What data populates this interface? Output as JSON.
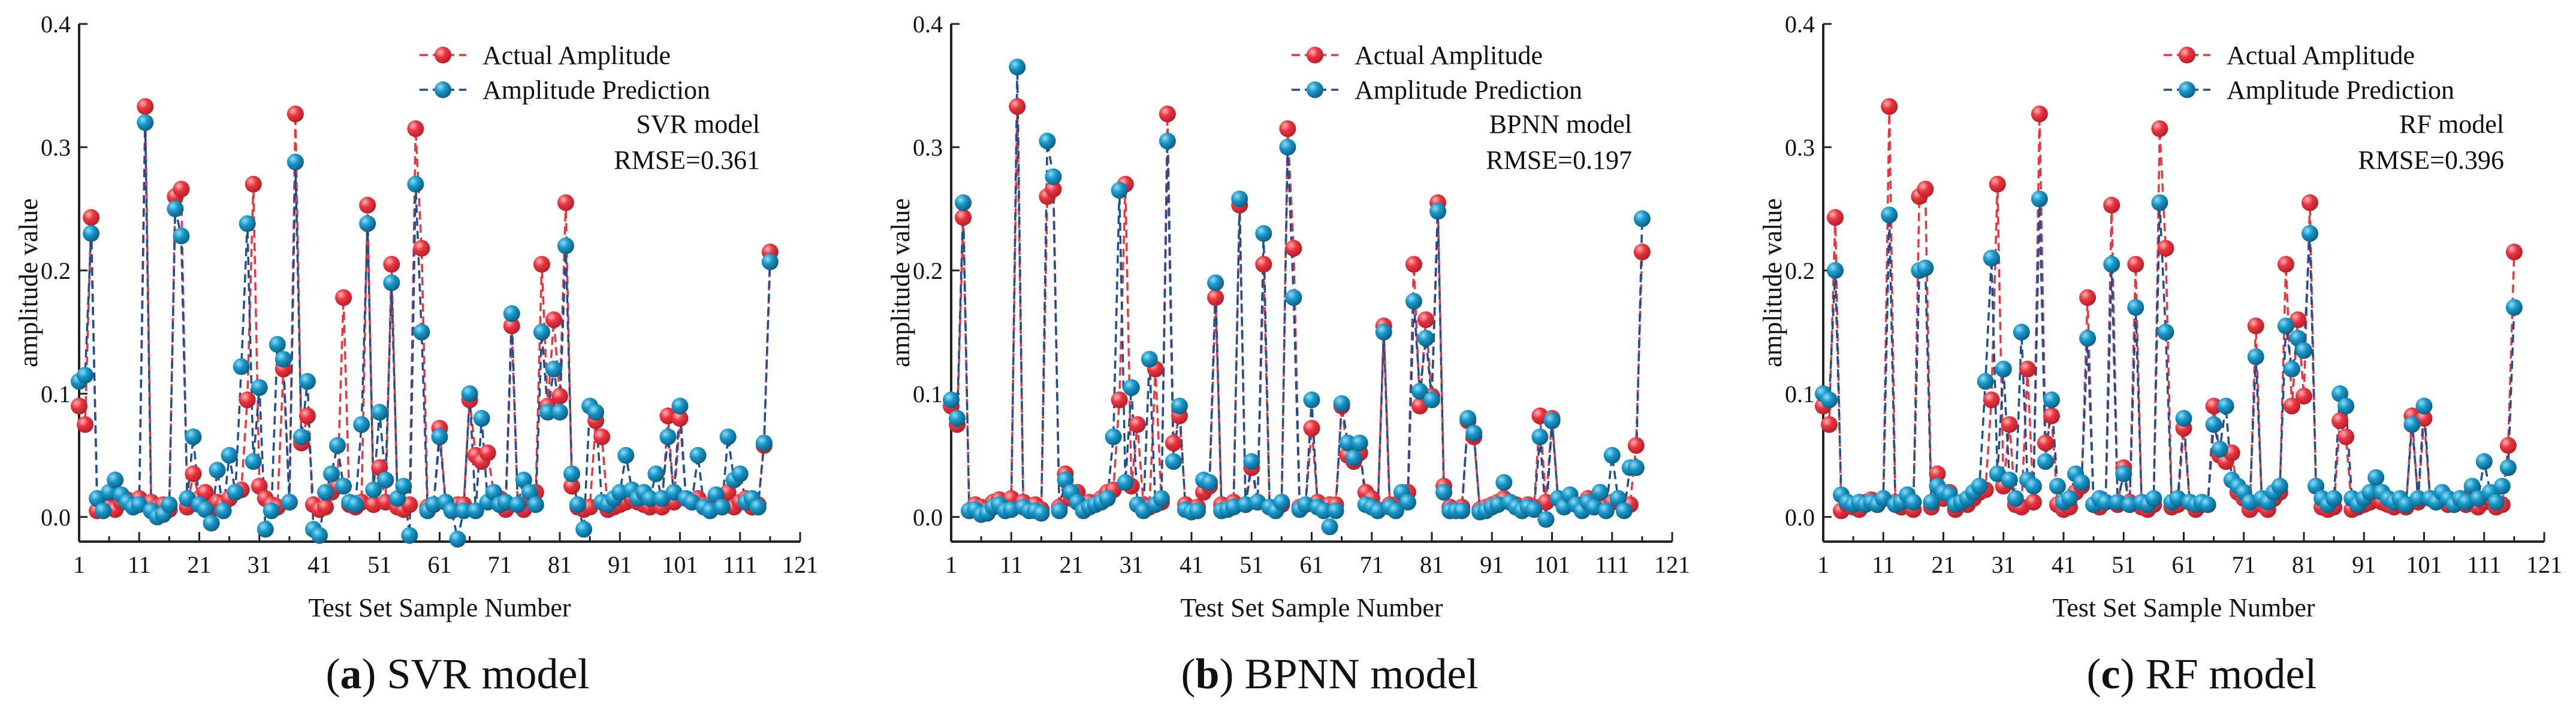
{
  "colors": {
    "actual": "#e8353f",
    "actual_dark": "#b81e28",
    "pred": "#1797c8",
    "pred_dark": "#0d5e84",
    "pred_line": "#1d4f93"
  },
  "chart_data": [
    {
      "type": "line",
      "caption_letter": "a",
      "caption_rest": " SVR model",
      "model_label": "SVR model",
      "rmse_label": "RMSE=0.361",
      "xlabel": "Test Set Sample Number",
      "ylabel": "amplitude value",
      "xlim": [
        1,
        121
      ],
      "ylim": [
        -0.02,
        0.4
      ],
      "xticks": [
        1,
        11,
        21,
        31,
        41,
        51,
        61,
        71,
        81,
        91,
        101,
        111,
        121
      ],
      "yticks": [
        0.0,
        0.1,
        0.2,
        0.3,
        0.4
      ],
      "ytick_labels": [
        "0.0",
        "0.1",
        "0.2",
        "0.3",
        "0.4"
      ],
      "legend": [
        "Actual Amplitude",
        "Amplitude Prediction"
      ],
      "series": [
        {
          "name": "Actual Amplitude",
          "values": [
            0.09,
            0.075,
            0.243,
            0.005,
            0.01,
            0.008,
            0.006,
            0.012,
            0.014,
            0.01,
            0.015,
            0.333,
            0.012,
            0.008,
            0.01,
            0.006,
            0.26,
            0.266,
            0.008,
            0.035,
            0.015,
            0.02,
            0.006,
            0.012,
            0.01,
            0.015,
            0.02,
            0.022,
            0.095,
            0.27,
            0.025,
            0.015,
            0.01,
            0.008,
            0.12,
            0.012,
            0.327,
            0.06,
            0.082,
            0.01,
            0.006,
            0.008,
            0.02,
            0.025,
            0.178,
            0.01,
            0.008,
            0.012,
            0.253,
            0.01,
            0.04,
            0.012,
            0.205,
            0.008,
            0.006,
            0.01,
            0.315,
            0.218,
            0.008,
            0.01,
            0.072,
            0.012,
            0.006,
            0.01,
            0.01,
            0.095,
            0.05,
            0.045,
            0.052,
            0.02,
            0.015,
            0.006,
            0.155,
            0.01,
            0.006,
            0.015,
            0.02,
            0.205,
            0.09,
            0.16,
            0.098,
            0.255,
            0.025,
            0.008,
            0.006,
            0.008,
            0.078,
            0.065,
            0.006,
            0.008,
            0.01,
            0.012,
            0.015,
            0.012,
            0.01,
            0.008,
            0.01,
            0.008,
            0.082,
            0.012,
            0.08,
            0.015,
            0.012,
            0.015,
            0.01,
            0.01,
            0.015,
            0.01,
            0.02,
            0.008,
            0.012,
            0.015,
            0.008,
            0.01,
            0.058,
            0.215
          ]
        },
        {
          "name": "Amplitude Prediction",
          "values": [
            0.11,
            0.115,
            0.23,
            0.015,
            0.005,
            0.02,
            0.03,
            0.018,
            0.012,
            0.008,
            0.01,
            0.32,
            0.005,
            0.0,
            0.002,
            0.01,
            0.25,
            0.228,
            0.015,
            0.065,
            0.01,
            0.006,
            -0.005,
            0.038,
            0.005,
            0.05,
            0.02,
            0.122,
            0.238,
            0.045,
            0.105,
            -0.01,
            0.005,
            0.14,
            0.128,
            0.012,
            0.288,
            0.065,
            0.11,
            -0.01,
            -0.015,
            0.02,
            0.035,
            0.058,
            0.025,
            0.012,
            0.01,
            0.075,
            0.238,
            0.022,
            0.085,
            0.03,
            0.19,
            0.015,
            0.025,
            -0.015,
            0.27,
            0.15,
            0.005,
            0.01,
            0.065,
            0.012,
            0.005,
            -0.018,
            0.005,
            0.1,
            0.005,
            0.08,
            0.012,
            0.02,
            0.01,
            0.012,
            0.165,
            0.01,
            0.03,
            0.02,
            0.01,
            0.15,
            0.085,
            0.12,
            0.085,
            0.22,
            0.035,
            0.01,
            -0.01,
            0.09,
            0.085,
            0.012,
            0.01,
            0.015,
            0.02,
            0.05,
            0.022,
            0.015,
            0.02,
            0.015,
            0.035,
            0.015,
            0.065,
            0.02,
            0.09,
            0.015,
            0.012,
            0.05,
            0.008,
            0.005,
            0.018,
            0.008,
            0.065,
            0.03,
            0.035,
            0.012,
            0.015,
            0.008,
            0.06,
            0.207
          ]
        }
      ]
    },
    {
      "type": "line",
      "caption_letter": "b",
      "caption_rest": " BPNN model",
      "model_label": "BPNN model",
      "rmse_label": "RMSE=0.197",
      "xlabel": "Test Set Sample Number",
      "ylabel": "amplitude value",
      "xlim": [
        1,
        121
      ],
      "ylim": [
        -0.02,
        0.4
      ],
      "xticks": [
        1,
        11,
        21,
        31,
        41,
        51,
        61,
        71,
        81,
        91,
        101,
        111,
        121
      ],
      "yticks": [
        0.0,
        0.1,
        0.2,
        0.3,
        0.4
      ],
      "ytick_labels": [
        "0.0",
        "0.1",
        "0.2",
        "0.3",
        "0.4"
      ],
      "legend": [
        "Actual Amplitude",
        "Amplitude Prediction"
      ],
      "series": [
        {
          "name": "Actual Amplitude",
          "values": [
            0.09,
            0.075,
            0.243,
            0.005,
            0.01,
            0.008,
            0.006,
            0.012,
            0.014,
            0.01,
            0.015,
            0.333,
            0.012,
            0.008,
            0.01,
            0.006,
            0.26,
            0.266,
            0.008,
            0.035,
            0.015,
            0.02,
            0.006,
            0.012,
            0.01,
            0.015,
            0.02,
            0.022,
            0.095,
            0.27,
            0.025,
            0.075,
            0.01,
            0.008,
            0.12,
            0.012,
            0.327,
            0.06,
            0.082,
            0.01,
            0.006,
            0.008,
            0.02,
            0.025,
            0.178,
            0.01,
            0.008,
            0.012,
            0.253,
            0.01,
            0.04,
            0.012,
            0.205,
            0.008,
            0.006,
            0.01,
            0.315,
            0.218,
            0.008,
            0.01,
            0.072,
            0.012,
            0.006,
            0.01,
            0.01,
            0.09,
            0.05,
            0.045,
            0.052,
            0.02,
            0.015,
            0.006,
            0.155,
            0.01,
            0.006,
            0.015,
            0.02,
            0.205,
            0.09,
            0.16,
            0.098,
            0.255,
            0.025,
            0.008,
            0.006,
            0.008,
            0.078,
            0.065,
            0.006,
            0.008,
            0.01,
            0.012,
            0.015,
            0.012,
            0.01,
            0.008,
            0.01,
            0.008,
            0.082,
            0.012,
            0.08,
            0.015,
            0.012,
            0.015,
            0.01,
            0.01,
            0.015,
            0.01,
            0.02,
            0.008,
            0.012,
            0.015,
            0.008,
            0.01,
            0.058,
            0.215
          ]
        },
        {
          "name": "Amplitude Prediction",
          "values": [
            0.095,
            0.08,
            0.255,
            0.005,
            0.006,
            0.002,
            0.003,
            0.008,
            0.01,
            0.005,
            0.006,
            0.365,
            0.008,
            0.005,
            0.005,
            0.003,
            0.305,
            0.276,
            0.005,
            0.03,
            0.02,
            0.012,
            0.005,
            0.008,
            0.01,
            0.012,
            0.015,
            0.065,
            0.265,
            0.028,
            0.105,
            0.01,
            0.005,
            0.128,
            0.01,
            0.015,
            0.305,
            0.045,
            0.09,
            0.006,
            0.004,
            0.005,
            0.03,
            0.028,
            0.19,
            0.005,
            0.006,
            0.008,
            0.258,
            0.01,
            0.045,
            0.012,
            0.23,
            0.008,
            0.005,
            0.012,
            0.3,
            0.178,
            0.006,
            0.01,
            0.095,
            0.008,
            0.005,
            -0.008,
            0.005,
            0.092,
            0.06,
            0.048,
            0.06,
            0.01,
            0.008,
            0.005,
            0.15,
            0.008,
            0.005,
            0.02,
            0.012,
            0.175,
            0.102,
            0.145,
            0.095,
            0.248,
            0.02,
            0.005,
            0.005,
            0.005,
            0.08,
            0.068,
            0.004,
            0.005,
            0.008,
            0.01,
            0.028,
            0.012,
            0.008,
            0.005,
            0.008,
            0.006,
            0.065,
            -0.002,
            0.078,
            0.015,
            0.008,
            0.018,
            0.01,
            0.005,
            0.012,
            0.008,
            0.02,
            0.005,
            0.05,
            0.015,
            0.005,
            0.04,
            0.04,
            0.242
          ]
        }
      ]
    },
    {
      "type": "line",
      "caption_letter": "c",
      "caption_rest": " RF model",
      "model_label": "RF model",
      "rmse_label": "RMSE=0.396",
      "xlabel": "Test Set Sample Number",
      "ylabel": "amplitude value",
      "xlim": [
        1,
        121
      ],
      "ylim": [
        -0.02,
        0.4
      ],
      "xticks": [
        1,
        11,
        21,
        31,
        41,
        51,
        61,
        71,
        81,
        91,
        101,
        111,
        121
      ],
      "yticks": [
        0.0,
        0.1,
        0.2,
        0.3,
        0.4
      ],
      "ytick_labels": [
        "0.0",
        "0.1",
        "0.2",
        "0.3",
        "0.4"
      ],
      "legend": [
        "Actual Amplitude",
        "Amplitude Prediction"
      ],
      "series": [
        {
          "name": "Actual Amplitude",
          "values": [
            0.09,
            0.075,
            0.243,
            0.005,
            0.01,
            0.008,
            0.006,
            0.012,
            0.014,
            0.01,
            0.015,
            0.333,
            0.012,
            0.008,
            0.01,
            0.006,
            0.26,
            0.266,
            0.008,
            0.035,
            0.015,
            0.02,
            0.006,
            0.012,
            0.01,
            0.015,
            0.02,
            0.022,
            0.095,
            0.27,
            0.025,
            0.075,
            0.01,
            0.008,
            0.12,
            0.012,
            0.327,
            0.06,
            0.082,
            0.01,
            0.006,
            0.008,
            0.02,
            0.025,
            0.178,
            0.01,
            0.008,
            0.012,
            0.253,
            0.01,
            0.04,
            0.012,
            0.205,
            0.008,
            0.006,
            0.01,
            0.315,
            0.218,
            0.008,
            0.01,
            0.072,
            0.012,
            0.006,
            0.01,
            0.01,
            0.09,
            0.05,
            0.045,
            0.052,
            0.02,
            0.015,
            0.006,
            0.155,
            0.01,
            0.006,
            0.015,
            0.02,
            0.205,
            0.09,
            0.16,
            0.098,
            0.255,
            0.025,
            0.008,
            0.006,
            0.008,
            0.078,
            0.065,
            0.006,
            0.008,
            0.01,
            0.012,
            0.015,
            0.012,
            0.01,
            0.008,
            0.01,
            0.008,
            0.082,
            0.012,
            0.08,
            0.015,
            0.012,
            0.015,
            0.01,
            0.01,
            0.015,
            0.01,
            0.02,
            0.008,
            0.012,
            0.015,
            0.008,
            0.01,
            0.058,
            0.215
          ]
        },
        {
          "name": "Amplitude Prediction",
          "values": [
            0.1,
            0.095,
            0.2,
            0.018,
            0.012,
            0.01,
            0.012,
            0.01,
            0.012,
            0.01,
            0.015,
            0.245,
            0.01,
            0.012,
            0.018,
            0.012,
            0.2,
            0.202,
            0.012,
            0.025,
            0.02,
            0.018,
            0.01,
            0.012,
            0.015,
            0.02,
            0.025,
            0.11,
            0.21,
            0.035,
            0.12,
            0.03,
            0.015,
            0.15,
            0.03,
            0.025,
            0.258,
            0.045,
            0.095,
            0.025,
            0.012,
            0.015,
            0.035,
            0.028,
            0.145,
            0.01,
            0.015,
            0.012,
            0.205,
            0.012,
            0.035,
            0.01,
            0.17,
            0.012,
            0.01,
            0.015,
            0.255,
            0.15,
            0.012,
            0.015,
            0.08,
            0.012,
            0.01,
            0.012,
            0.01,
            0.075,
            0.055,
            0.09,
            0.03,
            0.025,
            0.02,
            0.012,
            0.13,
            0.015,
            0.012,
            0.02,
            0.025,
            0.155,
            0.12,
            0.145,
            0.135,
            0.23,
            0.025,
            0.015,
            0.01,
            0.015,
            0.1,
            0.09,
            0.015,
            0.01,
            0.015,
            0.02,
            0.032,
            0.02,
            0.015,
            0.012,
            0.015,
            0.01,
            0.075,
            0.015,
            0.09,
            0.015,
            0.012,
            0.02,
            0.015,
            0.01,
            0.015,
            0.012,
            0.025,
            0.015,
            0.045,
            0.02,
            0.012,
            0.025,
            0.04,
            0.17
          ]
        }
      ]
    }
  ]
}
